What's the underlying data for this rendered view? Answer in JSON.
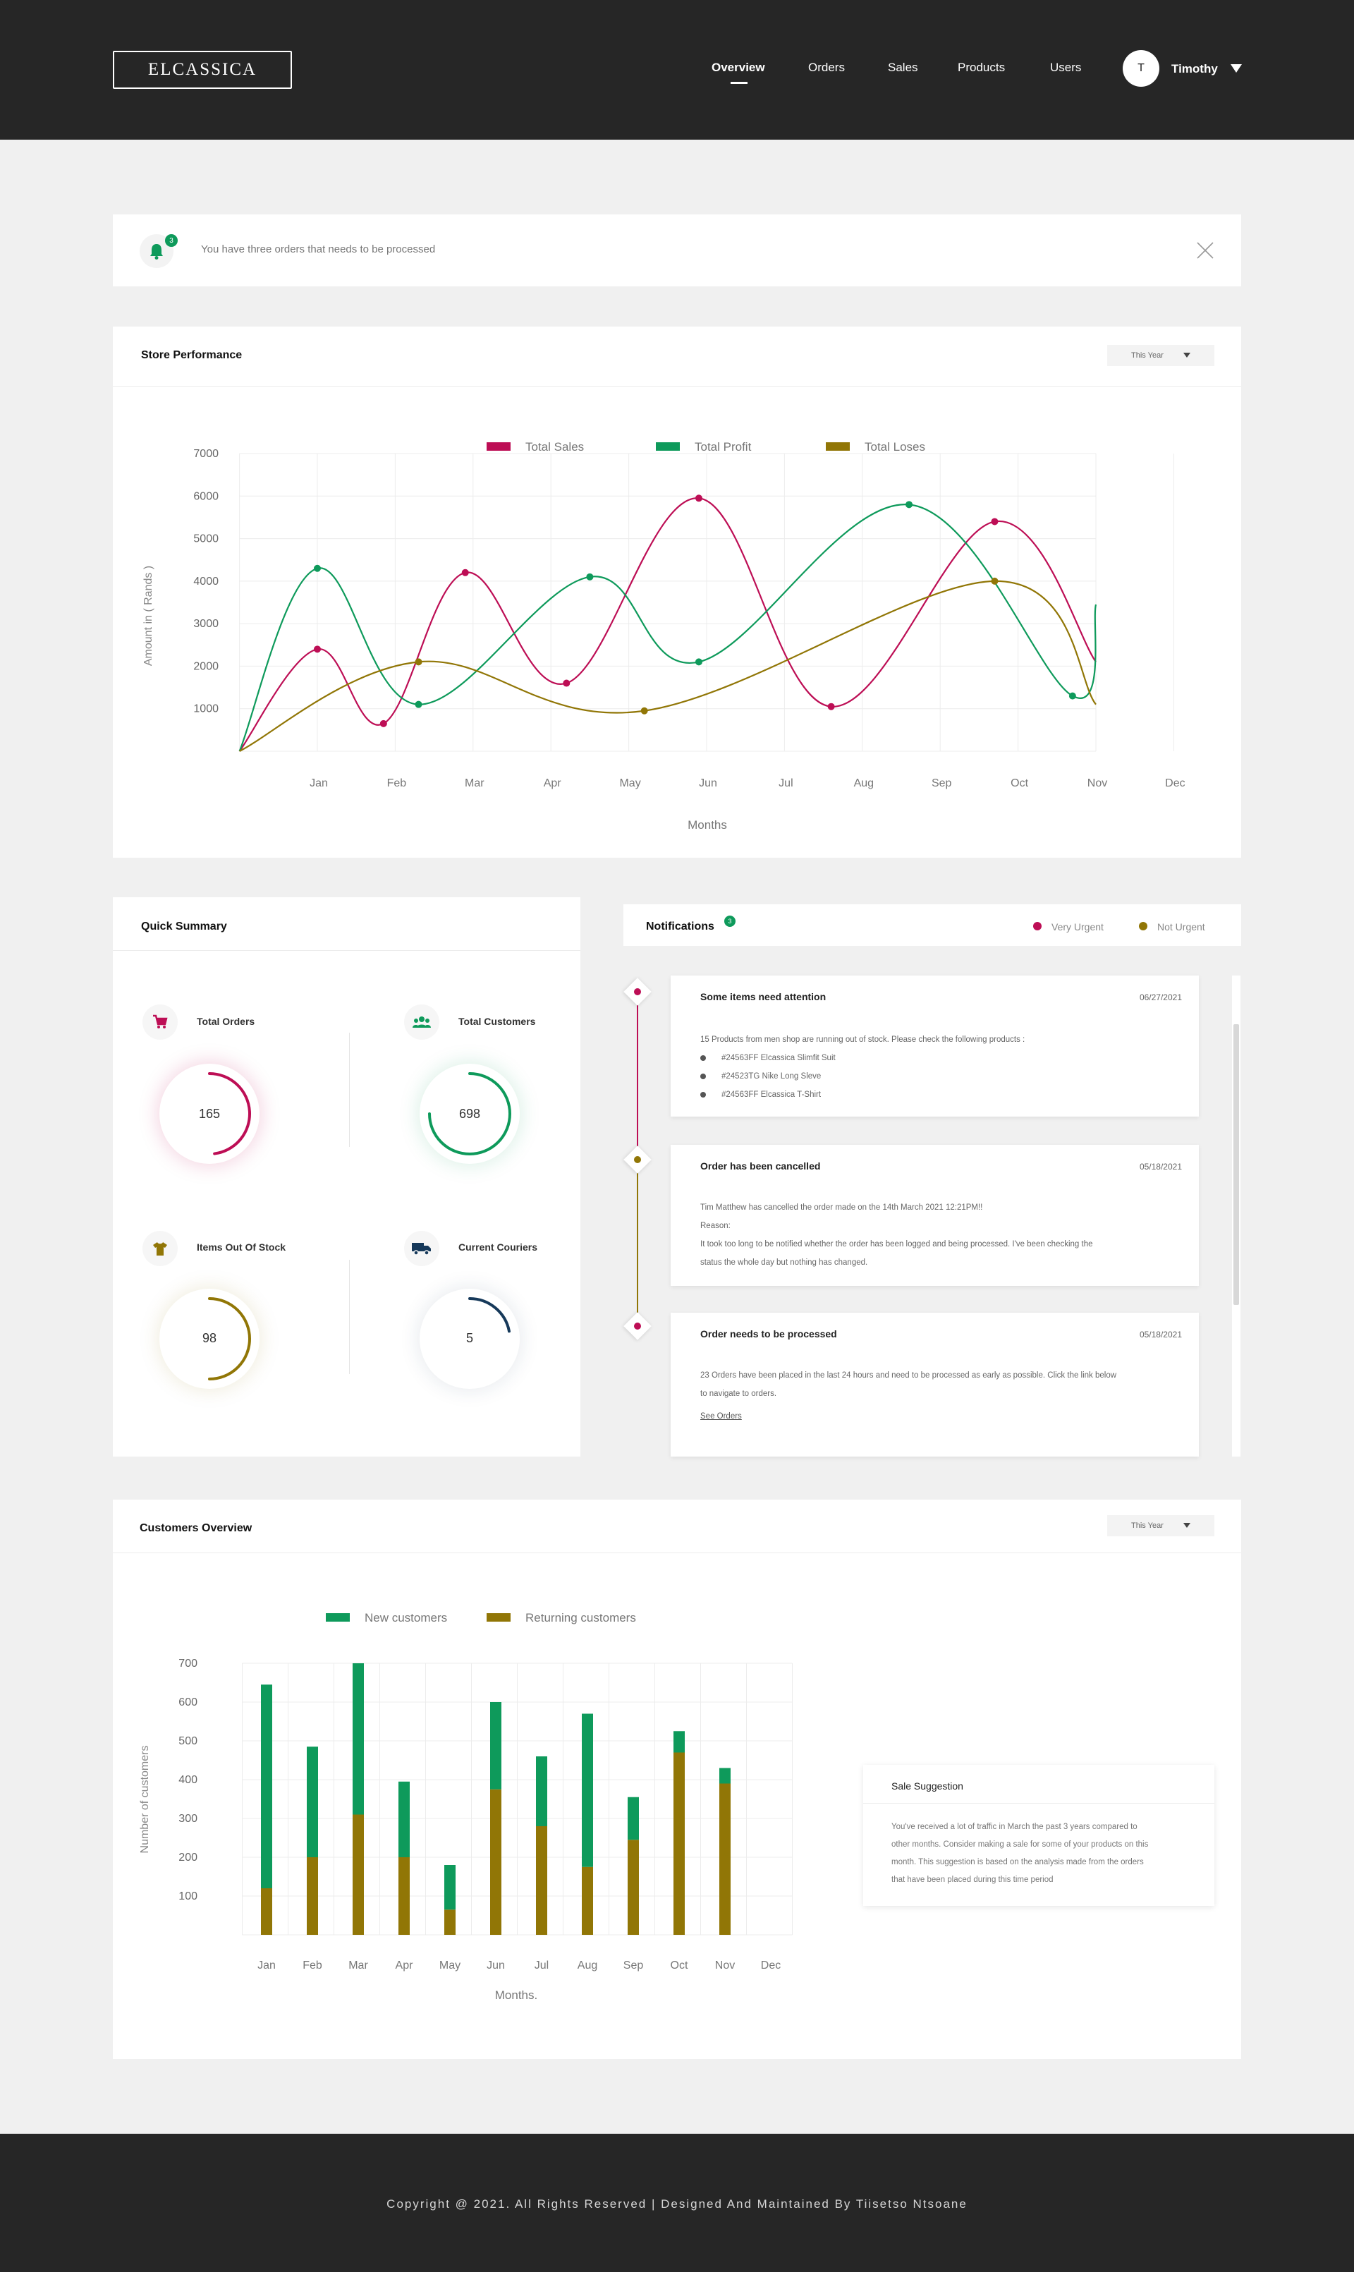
{
  "header": {
    "logo": "ELCASSICA",
    "nav": [
      {
        "label": "Overview",
        "active": true
      },
      {
        "label": "Orders"
      },
      {
        "label": "Sales"
      },
      {
        "label": "Products"
      },
      {
        "label": "Users"
      }
    ],
    "avatar_initial": "T",
    "username": "Timothy"
  },
  "alert": {
    "badge": "3",
    "message": "You have three orders that needs to be processed"
  },
  "store_performance": {
    "title": "Store Performance",
    "period": "This Year",
    "chart_data": {
      "type": "line",
      "categories": [
        "Jan",
        "Feb",
        "Mar",
        "Apr",
        "May",
        "Jun",
        "Jul",
        "Aug",
        "Sep",
        "Oct",
        "Nov",
        "Dec"
      ],
      "series": [
        {
          "name": "Total Sales",
          "color": "#bd0e55",
          "points": [
            [
              -1,
              0
            ],
            [
              0,
              2400
            ],
            [
              0.85,
              650
            ],
            [
              1.9,
              4200
            ],
            [
              3.2,
              1600
            ],
            [
              4.9,
              5950
            ],
            [
              6.6,
              1050
            ],
            [
              8.7,
              5400
            ],
            [
              10,
              2100
            ]
          ]
        },
        {
          "name": "Total Profit",
          "color": "#0e9a5b",
          "points": [
            [
              -1,
              0
            ],
            [
              0,
              4300
            ],
            [
              1.3,
              1100
            ],
            [
              3.5,
              4100
            ],
            [
              4.9,
              2100
            ],
            [
              7.6,
              5800
            ],
            [
              9.7,
              1300
            ],
            [
              10,
              3450
            ]
          ]
        },
        {
          "name": "Total Loses",
          "color": "#917606",
          "points": [
            [
              -1,
              0
            ],
            [
              1.3,
              2100
            ],
            [
              4.2,
              950
            ],
            [
              8.7,
              4000
            ],
            [
              10,
              1100
            ]
          ]
        }
      ],
      "xlabel": "Months",
      "ylabel": "Amount in ( Rands )",
      "yticks": [
        1000,
        2000,
        3000,
        4000,
        5000,
        6000,
        7000
      ],
      "ylim": [
        0,
        7000
      ],
      "grid": true,
      "legend": "top-center"
    }
  },
  "quick_summary": {
    "title": "Quick Summary",
    "items": [
      {
        "label": "Total Orders",
        "value": "165",
        "color": "#bd0e55",
        "fraction": 0.48
      },
      {
        "label": "Total Customers",
        "value": "698",
        "color": "#0e9a5b",
        "fraction": 0.75
      },
      {
        "label": "Items Out Of Stock",
        "value": "98",
        "color": "#917606",
        "fraction": 0.5
      },
      {
        "label": "Current Couriers",
        "value": "5",
        "color": "#16395a",
        "fraction": 0.22
      }
    ]
  },
  "notifications": {
    "title": "Notifications",
    "badge": "3",
    "legend": [
      {
        "label": "Very Urgent",
        "color": "#bd0e55"
      },
      {
        "label": "Not Urgent",
        "color": "#917606"
      }
    ],
    "items": [
      {
        "title": "Some items need attention",
        "date": "06/27/2021",
        "urgency_color": "#bd0e55",
        "body": "15 Products from men shop are running out of stock. Please check the following products :",
        "bullets": [
          "#24563FF Elcassica Slimfit Suit",
          "#24523TG Nike Long Sleve",
          "#24563FF Elcassica T-Shirt"
        ]
      },
      {
        "title": "Order has been cancelled",
        "date": "05/18/2021",
        "urgency_color": "#917606",
        "lines": [
          "Tim Matthew has cancelled the order made on the 14th March 2021 12:21PM!!",
          "Reason:",
          "It took too long to be notified whether the order has been logged and being processed. I've been checking the",
          "status the whole day but nothing has changed."
        ]
      },
      {
        "title": "Order needs to be processed",
        "date": "05/18/2021",
        "urgency_color": "#bd0e55",
        "lines": [
          "23 Orders have been placed in the last 24 hours and need to be processed as early as possible. Click the link below",
          "to navigate to orders."
        ],
        "link": "See Orders"
      }
    ]
  },
  "customers_overview": {
    "title": "Customers Overview",
    "period": "This Year",
    "chart_data": {
      "type": "bar",
      "stacked": true,
      "categories": [
        "Jan",
        "Feb",
        "Mar",
        "Apr",
        "May",
        "Jun",
        "Jul",
        "Aug",
        "Sep",
        "Oct",
        "Nov",
        "Dec"
      ],
      "series": [
        {
          "name": "New customers",
          "color": "#0e9a5b",
          "values": [
            525,
            285,
            390,
            195,
            115,
            225,
            180,
            395,
            110,
            55,
            40,
            0
          ]
        },
        {
          "name": "Returning customers",
          "color": "#917606",
          "values": [
            120,
            200,
            310,
            200,
            65,
            375,
            280,
            175,
            245,
            470,
            390,
            0
          ]
        }
      ],
      "xlabel": "Months.",
      "ylabel": "Number of customers",
      "yticks": [
        100,
        200,
        300,
        400,
        500,
        600,
        700
      ],
      "ylim": [
        0,
        700
      ],
      "grid": true,
      "legend": "top-center"
    }
  },
  "sale_suggestion": {
    "title": "Sale Suggestion",
    "lines": [
      "You've received a lot of traffic in March the past 3 years compared to",
      "other months. Consider making a sale for some of your products on this",
      "month. This suggestion is based on the analysis made from the orders",
      "that have been placed during this time period"
    ]
  },
  "footer": {
    "text": "Copyright @ 2021. All Rights Reserved | Designed And Maintained By Tiisetso Ntsoane"
  }
}
